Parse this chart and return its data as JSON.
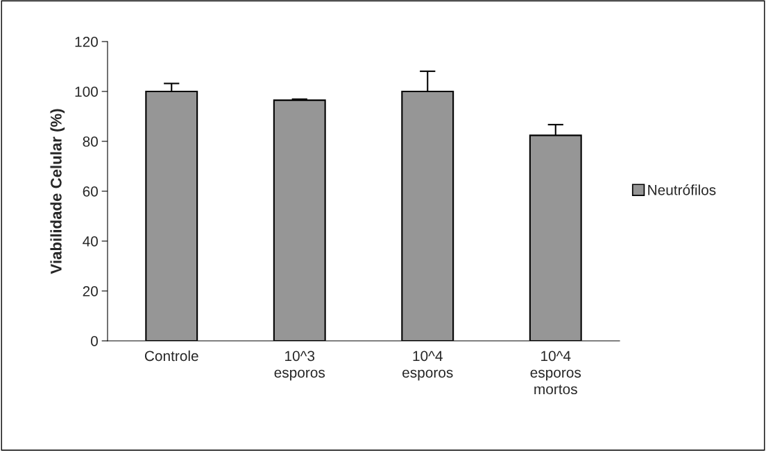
{
  "chart_data": {
    "type": "bar",
    "ylabel": "Viabilidade Celular (%)",
    "categories": [
      "Controle",
      "10^3\nesporos",
      "10^4\nesporos",
      "10^4\nesporos\nmortos"
    ],
    "series": [
      {
        "name": "Neutrófilos",
        "color": "#969696",
        "values": [
          100,
          96.5,
          100,
          82.4
        ],
        "errors": [
          3.2,
          0.4,
          8.1,
          4.3
        ]
      }
    ],
    "ylim": [
      0,
      120
    ],
    "yticks": [
      0,
      20,
      40,
      60,
      80,
      100,
      120
    ],
    "grid": false,
    "legend": "right"
  }
}
